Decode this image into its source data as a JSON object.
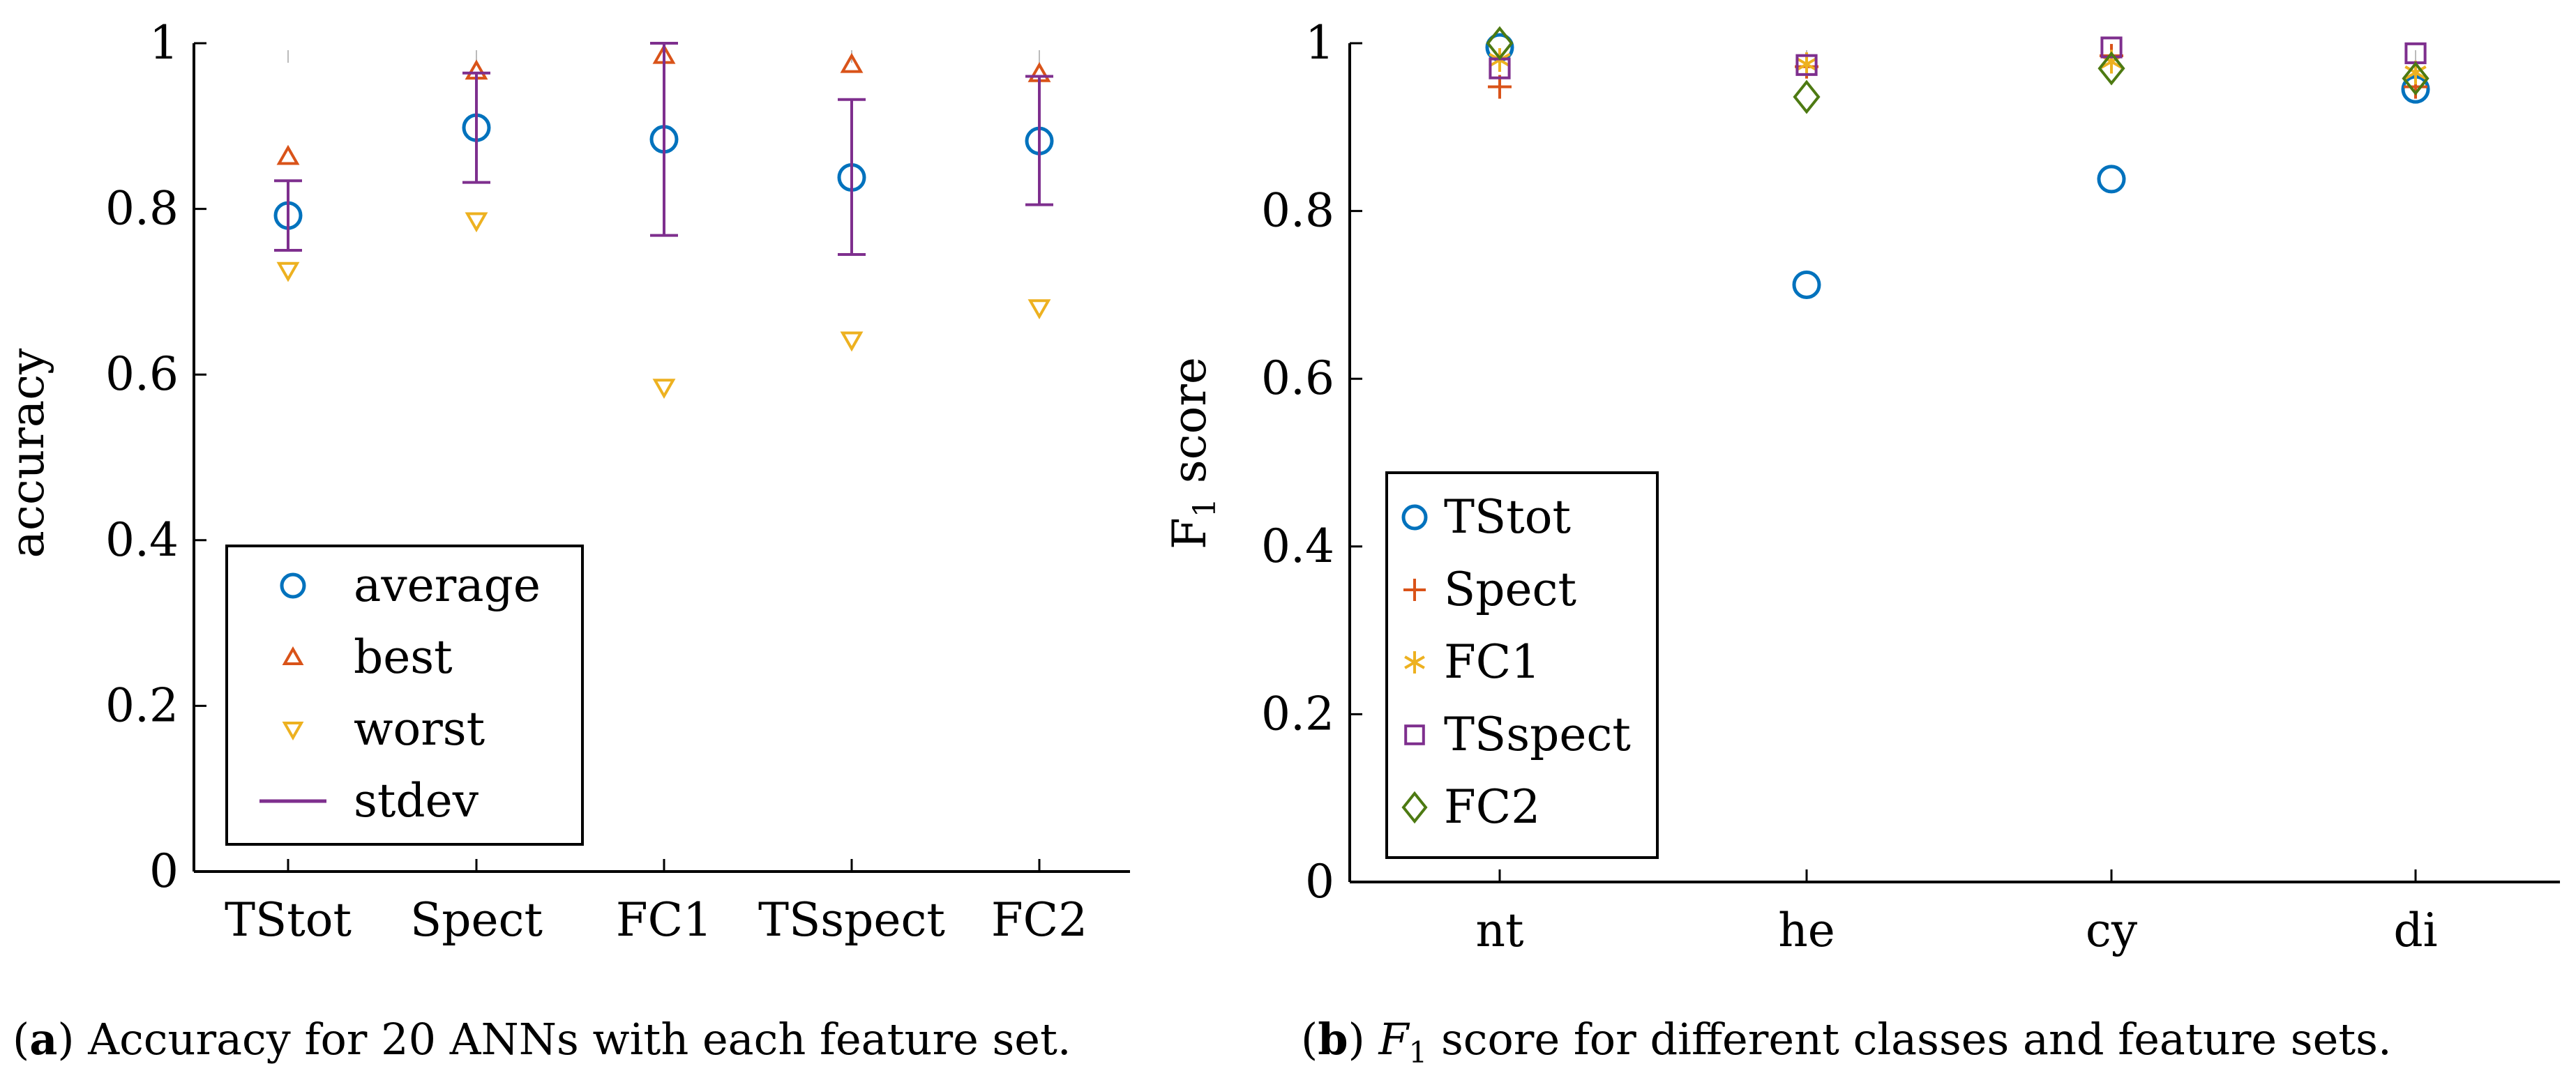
{
  "colors": {
    "blue": "#0072BD",
    "red": "#D95319",
    "orange": "#EDB120",
    "purple": "#7E2F8E",
    "green": "#4D7A12",
    "axis": "#000000"
  },
  "chart_data": [
    {
      "type": "scatter",
      "ylabel": "accuracy",
      "xlabel": "",
      "categories": [
        "TStot",
        "Spect",
        "FC1",
        "TSspect",
        "FC2"
      ],
      "yticks": [
        "0",
        "0.2",
        "0.4",
        "0.6",
        "0.8",
        "1"
      ],
      "ylim": [
        0,
        1
      ],
      "legend_position": "bottom-left",
      "series": [
        {
          "name": "average",
          "marker": "circle",
          "color": "blue",
          "values": [
            0.792,
            0.898,
            0.884,
            0.838,
            0.882
          ]
        },
        {
          "name": "best",
          "marker": "triangle-up",
          "color": "red",
          "values": [
            0.863,
            0.966,
            0.985,
            0.974,
            0.963
          ]
        },
        {
          "name": "worst",
          "marker": "triangle-down",
          "color": "orange",
          "values": [
            0.726,
            0.786,
            0.585,
            0.642,
            0.681
          ]
        },
        {
          "name": "stdev",
          "marker": "errorbar",
          "color": "purple",
          "low": [
            0.75,
            0.832,
            0.768,
            0.745,
            0.805
          ],
          "high": [
            0.834,
            0.964,
            1.0,
            0.932,
            0.96
          ]
        }
      ],
      "caption_tag": "a",
      "caption_text": " Accuracy for 20 ANNs with each feature set."
    },
    {
      "type": "scatter",
      "ylabel": "F1 score",
      "xlabel": "",
      "categories": [
        "nt",
        "he",
        "cy",
        "di"
      ],
      "yticks": [
        "0",
        "0.2",
        "0.4",
        "0.6",
        "0.8",
        "1"
      ],
      "ylim": [
        0,
        1
      ],
      "legend_position": "bottom-left",
      "series": [
        {
          "name": "TStot",
          "marker": "circle",
          "color": "blue",
          "values": [
            0.995,
            0.712,
            0.838,
            0.945
          ]
        },
        {
          "name": "Spect",
          "marker": "plus",
          "color": "red",
          "values": [
            0.948,
            0.972,
            0.985,
            0.948
          ]
        },
        {
          "name": "FC1",
          "marker": "asterisk",
          "color": "orange",
          "values": [
            0.98,
            0.975,
            0.978,
            0.965
          ]
        },
        {
          "name": "TSspect",
          "marker": "square",
          "color": "purple",
          "values": [
            0.97,
            0.974,
            0.995,
            0.988
          ]
        },
        {
          "name": "FC2",
          "marker": "diamond",
          "color": "green",
          "values": [
            1.0,
            0.936,
            0.97,
            0.958
          ]
        }
      ],
      "caption_tag": "b",
      "caption_symbol": "F",
      "caption_text": " score for different classes and feature sets."
    }
  ]
}
